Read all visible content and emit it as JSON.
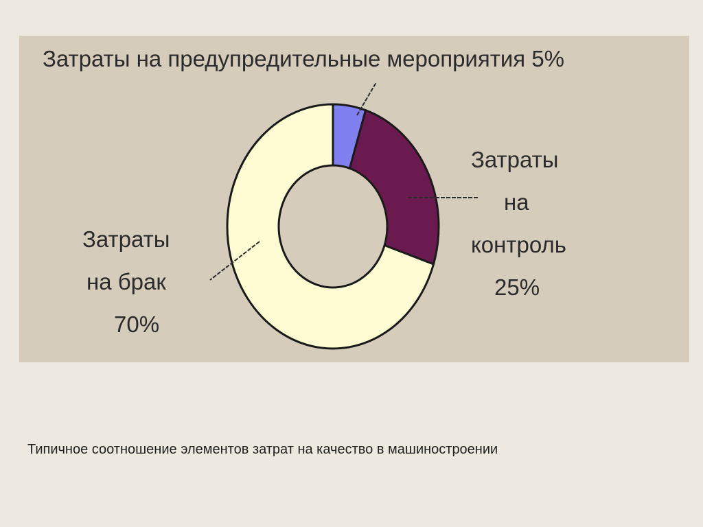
{
  "chart_data": {
    "type": "pie",
    "donut": true,
    "slices": [
      {
        "label_lines": [
          "Затраты на предупредительные мероприятия 5%"
        ],
        "value": 5,
        "color": "#8080f0"
      },
      {
        "label_lines": [
          "Затраты",
          "на",
          "контроль",
          "25%"
        ],
        "value": 25,
        "color": "#6b1a4f"
      },
      {
        "label_lines": [
          "Затраты",
          "на брак",
          "70%"
        ],
        "value": 70,
        "color": "#fdfcd2"
      }
    ],
    "background_color": "#d6ccbc"
  },
  "caption": "Типичное соотношение элементов затрат на качество в машиностроении"
}
